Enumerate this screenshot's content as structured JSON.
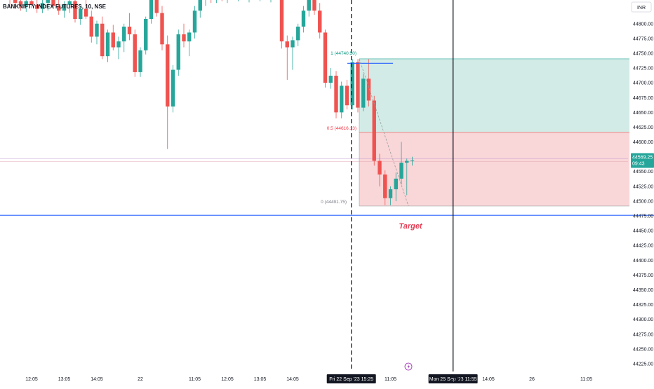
{
  "chart_data": {
    "type": "candlestick",
    "title": "BANKNIFTY INDEX FUTURES, 10, NSE",
    "currency": "INR",
    "ylim": [
      44212,
      44840
    ],
    "y_ticks": [
      44800,
      44775,
      44750,
      44725,
      44700,
      44675,
      44650,
      44625,
      44600,
      44575,
      44550,
      44525,
      44500,
      44475,
      44450,
      44425,
      44400,
      44375,
      44350,
      44325,
      44300,
      44275,
      44250,
      44225
    ],
    "y_tick_labels": [
      "44800.00",
      "44775.00",
      "44750.00",
      "44725.00",
      "44700.00",
      "44675.00",
      "44650.00",
      "44625.00",
      "44600.00",
      "44575.00",
      "44550.00",
      "44525.00",
      "44500.00",
      "44475.00",
      "44450.00",
      "44425.00",
      "44400.00",
      "44375.00",
      "44350.00",
      "44325.00",
      "44300.00",
      "44275.00",
      "44250.00",
      "44225.00"
    ],
    "x_ticks": [
      {
        "label": "12:05",
        "i": 4
      },
      {
        "label": "13:05",
        "i": 10
      },
      {
        "label": "14:05",
        "i": 16
      },
      {
        "label": "22",
        "i": 24
      },
      {
        "label": "11:05",
        "i": 34
      },
      {
        "label": "12:05",
        "i": 40
      },
      {
        "label": "13:05",
        "i": 46
      },
      {
        "label": "14:05",
        "i": 52
      },
      {
        "label": "11:05",
        "i": 70
      },
      {
        "label": "13:05",
        "i": 82
      },
      {
        "label": "14:05",
        "i": 88
      },
      {
        "label": "26",
        "i": 96
      },
      {
        "label": "11:05",
        "i": 106
      }
    ],
    "candles": [
      {
        "i": 0,
        "o": 44850,
        "h": 44860,
        "l": 44830,
        "c": 44845
      },
      {
        "i": 1,
        "o": 44845,
        "h": 44855,
        "l": 44825,
        "c": 44835
      },
      {
        "i": 2,
        "o": 44838,
        "h": 44850,
        "l": 44822,
        "c": 44830
      },
      {
        "i": 3,
        "o": 44830,
        "h": 44845,
        "l": 44820,
        "c": 44838
      },
      {
        "i": 4,
        "o": 44838,
        "h": 44852,
        "l": 44826,
        "c": 44832
      },
      {
        "i": 5,
        "o": 44832,
        "h": 44848,
        "l": 44818,
        "c": 44825
      },
      {
        "i": 6,
        "o": 44825,
        "h": 44840,
        "l": 44818,
        "c": 44835
      },
      {
        "i": 7,
        "o": 44835,
        "h": 44850,
        "l": 44822,
        "c": 44840
      },
      {
        "i": 8,
        "o": 44840,
        "h": 44850,
        "l": 44825,
        "c": 44830
      },
      {
        "i": 9,
        "o": 44830,
        "h": 44845,
        "l": 44815,
        "c": 44822
      },
      {
        "i": 10,
        "o": 44822,
        "h": 44838,
        "l": 44810,
        "c": 44832
      },
      {
        "i": 11,
        "o": 44832,
        "h": 44845,
        "l": 44818,
        "c": 44838
      },
      {
        "i": 12,
        "o": 44838,
        "h": 44850,
        "l": 44802,
        "c": 44808
      },
      {
        "i": 13,
        "o": 44808,
        "h": 44830,
        "l": 44798,
        "c": 44825
      },
      {
        "i": 14,
        "o": 44825,
        "h": 44840,
        "l": 44808,
        "c": 44812
      },
      {
        "i": 15,
        "o": 44812,
        "h": 44822,
        "l": 44768,
        "c": 44778
      },
      {
        "i": 16,
        "o": 44778,
        "h": 44805,
        "l": 44765,
        "c": 44800
      },
      {
        "i": 17,
        "o": 44800,
        "h": 44812,
        "l": 44740,
        "c": 44745
      },
      {
        "i": 18,
        "o": 44745,
        "h": 44790,
        "l": 44735,
        "c": 44785
      },
      {
        "i": 19,
        "o": 44785,
        "h": 44798,
        "l": 44755,
        "c": 44760
      },
      {
        "i": 20,
        "o": 44760,
        "h": 44778,
        "l": 44740,
        "c": 44770
      },
      {
        "i": 21,
        "o": 44770,
        "h": 44800,
        "l": 44752,
        "c": 44795
      },
      {
        "i": 22,
        "o": 44795,
        "h": 44818,
        "l": 44772,
        "c": 44782
      },
      {
        "i": 23,
        "o": 44782,
        "h": 44790,
        "l": 44710,
        "c": 44718
      },
      {
        "i": 24,
        "o": 44718,
        "h": 44760,
        "l": 44710,
        "c": 44755
      },
      {
        "i": 25,
        "o": 44755,
        "h": 44812,
        "l": 44748,
        "c": 44808
      },
      {
        "i": 26,
        "o": 44808,
        "h": 44845,
        "l": 44800,
        "c": 44840
      },
      {
        "i": 27,
        "o": 44840,
        "h": 44855,
        "l": 44812,
        "c": 44818
      },
      {
        "i": 28,
        "o": 44818,
        "h": 44830,
        "l": 44755,
        "c": 44765
      },
      {
        "i": 29,
        "o": 44765,
        "h": 44780,
        "l": 44588,
        "c": 44660
      },
      {
        "i": 30,
        "o": 44660,
        "h": 44730,
        "l": 44650,
        "c": 44722
      },
      {
        "i": 31,
        "o": 44722,
        "h": 44790,
        "l": 44712,
        "c": 44782
      },
      {
        "i": 32,
        "o": 44782,
        "h": 44800,
        "l": 44760,
        "c": 44770
      },
      {
        "i": 33,
        "o": 44770,
        "h": 44790,
        "l": 44745,
        "c": 44785
      },
      {
        "i": 34,
        "o": 44785,
        "h": 44830,
        "l": 44775,
        "c": 44822
      },
      {
        "i": 35,
        "o": 44822,
        "h": 44850,
        "l": 44810,
        "c": 44842
      },
      {
        "i": 36,
        "o": 44842,
        "h": 44860,
        "l": 44830,
        "c": 44850
      },
      {
        "i": 37,
        "o": 44850,
        "h": 44860,
        "l": 44835,
        "c": 44845
      },
      {
        "i": 38,
        "o": 44845,
        "h": 44860,
        "l": 44835,
        "c": 44852
      },
      {
        "i": 39,
        "o": 44852,
        "h": 44862,
        "l": 44838,
        "c": 44845
      },
      {
        "i": 40,
        "o": 44845,
        "h": 44860,
        "l": 44835,
        "c": 44850
      },
      {
        "i": 41,
        "o": 44850,
        "h": 44862,
        "l": 44840,
        "c": 44848
      },
      {
        "i": 42,
        "o": 44848,
        "h": 44860,
        "l": 44838,
        "c": 44852
      },
      {
        "i": 43,
        "o": 44852,
        "h": 44862,
        "l": 44840,
        "c": 44846
      },
      {
        "i": 44,
        "o": 44846,
        "h": 44860,
        "l": 44836,
        "c": 44850
      },
      {
        "i": 45,
        "o": 44850,
        "h": 44862,
        "l": 44840,
        "c": 44848
      },
      {
        "i": 46,
        "o": 44848,
        "h": 44860,
        "l": 44838,
        "c": 44854
      },
      {
        "i": 47,
        "o": 44854,
        "h": 44862,
        "l": 44840,
        "c": 44846
      },
      {
        "i": 48,
        "o": 44846,
        "h": 44860,
        "l": 44836,
        "c": 44852
      },
      {
        "i": 49,
        "o": 44852,
        "h": 44862,
        "l": 44840,
        "c": 44848
      },
      {
        "i": 50,
        "o": 44848,
        "h": 44856,
        "l": 44758,
        "c": 44770
      },
      {
        "i": 51,
        "o": 44770,
        "h": 44780,
        "l": 44705,
        "c": 44760
      },
      {
        "i": 52,
        "o": 44760,
        "h": 44778,
        "l": 44722,
        "c": 44772
      },
      {
        "i": 53,
        "o": 44772,
        "h": 44800,
        "l": 44762,
        "c": 44795
      },
      {
        "i": 54,
        "o": 44795,
        "h": 44830,
        "l": 44785,
        "c": 44822
      },
      {
        "i": 55,
        "o": 44822,
        "h": 44850,
        "l": 44812,
        "c": 44842
      },
      {
        "i": 56,
        "o": 44842,
        "h": 44856,
        "l": 44815,
        "c": 44822
      },
      {
        "i": 57,
        "o": 44822,
        "h": 44835,
        "l": 44775,
        "c": 44785
      },
      {
        "i": 58,
        "o": 44785,
        "h": 44790,
        "l": 44692,
        "c": 44700
      },
      {
        "i": 59,
        "o": 44700,
        "h": 44725,
        "l": 44690,
        "c": 44712
      },
      {
        "i": 60,
        "o": 44712,
        "h": 44720,
        "l": 44640,
        "c": 44650
      },
      {
        "i": 61,
        "o": 44650,
        "h": 44702,
        "l": 44640,
        "c": 44695
      },
      {
        "i": 62,
        "o": 44695,
        "h": 44705,
        "l": 44655,
        "c": 44662
      },
      {
        "i": 63,
        "o": 44662,
        "h": 44740,
        "l": 44655,
        "c": 44735
      },
      {
        "i": 64,
        "o": 44735,
        "h": 44740,
        "l": 44650,
        "c": 44658
      },
      {
        "i": 65,
        "o": 44658,
        "h": 44715,
        "l": 44652,
        "c": 44707
      },
      {
        "i": 66,
        "o": 44707,
        "h": 44740,
        "l": 44660,
        "c": 44670
      },
      {
        "i": 67,
        "o": 44670,
        "h": 44678,
        "l": 44560,
        "c": 44568
      },
      {
        "i": 68,
        "o": 44568,
        "h": 44580,
        "l": 44525,
        "c": 44545
      },
      {
        "i": 69,
        "o": 44545,
        "h": 44552,
        "l": 44493,
        "c": 44505
      },
      {
        "i": 70,
        "o": 44505,
        "h": 44525,
        "l": 44493,
        "c": 44520
      },
      {
        "i": 71,
        "o": 44520,
        "h": 44548,
        "l": 44500,
        "c": 44538
      },
      {
        "i": 72,
        "o": 44538,
        "h": 44600,
        "l": 44528,
        "c": 44565
      },
      {
        "i": 73,
        "o": 44565,
        "h": 44572,
        "l": 44510,
        "c": 44568
      },
      {
        "i": 74,
        "o": 44568,
        "h": 44575,
        "l": 44560,
        "c": 44569
      }
    ],
    "last_price_label": "44569.25",
    "countdown_label": "09:43",
    "fib": {
      "level_1_label": "1 (44740.50)",
      "level_05_label": "0.5 (44616.13)",
      "level_0_label": "0 (44491.75)",
      "level_1": 44740.5,
      "level_05": 44616.13,
      "level_0": 44491.75
    },
    "position_zone": {
      "profit_top": 44740.5,
      "entry": 44616.13,
      "stop_bottom": 44491.75
    },
    "target_line": 44476,
    "target_label": "Target",
    "short_blue_line": 44733,
    "vlines": [
      {
        "i": 62.8,
        "style": "dashed",
        "label": "Fri 22 Sep '23   15:25"
      },
      {
        "i": 81.5,
        "style": "solid",
        "label": "Mon 25 Sep '23   11:55"
      }
    ],
    "colors": {
      "up": "#26a69a",
      "down": "#ef5350",
      "profit_zone": "#d2ebe6",
      "loss_zone": "#f9d6d8",
      "target_line": "#2962ff",
      "axis_text": "#131722",
      "target_text": "#e53950",
      "fib_label_1": "#089981",
      "fib_label_05": "#f23645"
    },
    "icons": [
      "lightning-icon"
    ]
  }
}
